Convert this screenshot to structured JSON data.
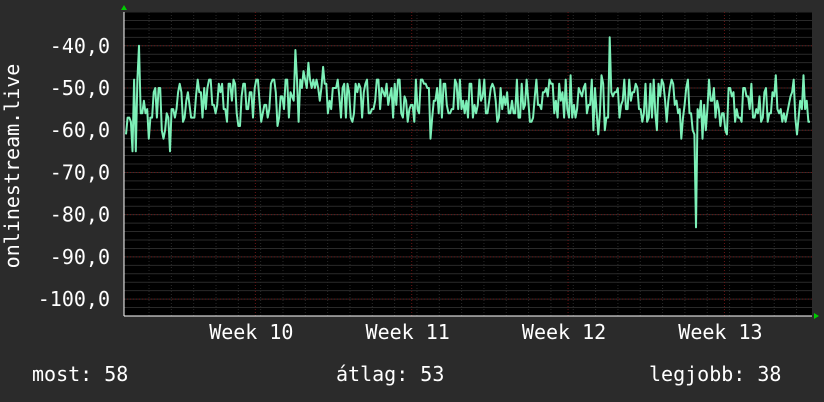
{
  "colors": {
    "background": "#2b2b2b",
    "plot_background": "#000000",
    "major_grid": "#6b1515",
    "minor_grid": "#2a2a2a",
    "line": "#7df0b8",
    "axis_arrow": "#00cc00",
    "text": "#ffffff"
  },
  "stats": {
    "now": "most: 58",
    "avg": "átlag: 53",
    "best": "legjobb: 38"
  },
  "chart_data": {
    "type": "line",
    "ylabel": "onlinestream.live",
    "ylim": [
      -104,
      -32
    ],
    "yticks": [
      -40,
      -50,
      -60,
      -70,
      -80,
      -90,
      -100
    ],
    "ytick_labels": [
      "-40,0",
      "-50,0",
      "-60,0",
      "-70,0",
      "-80,0",
      "-90,0",
      "-100,0"
    ],
    "xlim": [
      0,
      440
    ],
    "xticks": [
      {
        "x": 84,
        "label": "Week 10"
      },
      {
        "x": 184,
        "label": "Week 11"
      },
      {
        "x": 284,
        "label": "Week 12"
      },
      {
        "x": 384,
        "label": "Week 13"
      }
    ],
    "grid": true,
    "series": [
      {
        "values": [
          -61,
          -57,
          -57,
          -58,
          -65,
          -48,
          -65,
          -48,
          -40,
          -56,
          -56,
          -53,
          -56,
          -55,
          -62,
          -57,
          -57,
          -51,
          -50,
          -57,
          -50,
          -50,
          -60,
          -62,
          -60,
          -56,
          -57,
          -65,
          -55,
          -55,
          -57,
          -55,
          -51,
          -49,
          -51,
          -58,
          -57,
          -53,
          -51,
          -54,
          -57,
          -57,
          -57,
          -52,
          -48,
          -51,
          -51,
          -57,
          -50,
          -55,
          -50,
          -48,
          -48,
          -54,
          -54,
          -56,
          -54,
          -49,
          -51,
          -49,
          -55,
          -55,
          -58,
          -49,
          -49,
          -53,
          -48,
          -49,
          -56,
          -59,
          -59,
          -52,
          -49,
          -49,
          -55,
          -55,
          -51,
          -51,
          -57,
          -50,
          -48,
          -48,
          -53,
          -58,
          -56,
          -54,
          -54,
          -57,
          -55,
          -49,
          -48,
          -48,
          -51,
          -59,
          -57,
          -52,
          -52,
          -55,
          -48,
          -48,
          -57,
          -51,
          -52,
          -53,
          -41,
          -48,
          -58,
          -48,
          -50,
          -46,
          -48,
          -50,
          -44,
          -48,
          -50,
          -48,
          -50,
          -48,
          -50,
          -53,
          -50,
          -45,
          -49,
          -49,
          -56,
          -53,
          -55,
          -50,
          -50,
          -50,
          -48,
          -52,
          -57,
          -50,
          -49,
          -57,
          -49,
          -51,
          -57,
          -58,
          -56,
          -49,
          -51,
          -49,
          -50,
          -57,
          -51,
          -49,
          -48,
          -56,
          -56,
          -55,
          -55,
          -53,
          -48,
          -48,
          -55,
          -50,
          -51,
          -52,
          -49,
          -54,
          -52,
          -50,
          -57,
          -49,
          -54,
          -48,
          -48,
          -56,
          -57,
          -52,
          -53,
          -58,
          -55,
          -54,
          -54,
          -58,
          -48,
          -55,
          -56,
          -48,
          -48,
          -49,
          -49,
          -50,
          -50,
          -62,
          -57,
          -53,
          -53,
          -50,
          -56,
          -48,
          -57,
          -49,
          -49,
          -54,
          -56,
          -56,
          -55,
          -55,
          -48,
          -49,
          -55,
          -48,
          -55,
          -53,
          -56,
          -53,
          -57,
          -49,
          -49,
          -57,
          -54,
          -56,
          -54,
          -48,
          -53,
          -52,
          -48,
          -56,
          -56,
          -53,
          -50,
          -49,
          -50,
          -53,
          -58,
          -57,
          -50,
          -55,
          -52,
          -54,
          -51,
          -56,
          -56,
          -53,
          -56,
          -56,
          -48,
          -57,
          -57,
          -49,
          -55,
          -54,
          -48,
          -53,
          -58,
          -58,
          -57,
          -52,
          -48,
          -54,
          -54,
          -55,
          -51,
          -51,
          -50,
          -52,
          -48,
          -49,
          -49,
          -56,
          -53,
          -57,
          -49,
          -53,
          -51,
          -57,
          -48,
          -55,
          -57,
          -47,
          -57,
          -54,
          -57,
          -55,
          -50,
          -51,
          -52,
          -50,
          -49,
          -56,
          -54,
          -54,
          -48,
          -60,
          -50,
          -56,
          -61,
          -56,
          -47,
          -49,
          -60,
          -57,
          -57,
          -38,
          -51,
          -52,
          -51,
          -51,
          -50,
          -57,
          -54,
          -53,
          -48,
          -55,
          -55,
          -48,
          -53,
          -51,
          -51,
          -49,
          -50,
          -55,
          -55,
          -58,
          -56,
          -49,
          -58,
          -57,
          -49,
          -57,
          -48,
          -56,
          -60,
          -49,
          -52,
          -48,
          -49,
          -53,
          -58,
          -53,
          -50,
          -48,
          -49,
          -54,
          -53,
          -56,
          -55,
          -62,
          -57,
          -54,
          -50,
          -48,
          -56,
          -56,
          -60,
          -61,
          -83,
          -55,
          -57,
          -53,
          -62,
          -54,
          -60,
          -55,
          -48,
          -53,
          -53,
          -50,
          -57,
          -53,
          -55,
          -59,
          -56,
          -56,
          -60,
          -61,
          -50,
          -50,
          -52,
          -51,
          -58,
          -55,
          -57,
          -57,
          -58,
          -50,
          -50,
          -52,
          -52,
          -55,
          -49,
          -57,
          -57,
          -55,
          -56,
          -52,
          -58,
          -57,
          -51,
          -50,
          -58,
          -56,
          -56,
          -51,
          -52,
          -47,
          -55,
          -56,
          -55,
          -58,
          -56,
          -58,
          -56,
          -54,
          -52,
          -51,
          -48,
          -57,
          -61,
          -57,
          -53,
          -55,
          -47,
          -55,
          -53,
          -58,
          -58
        ]
      }
    ]
  }
}
